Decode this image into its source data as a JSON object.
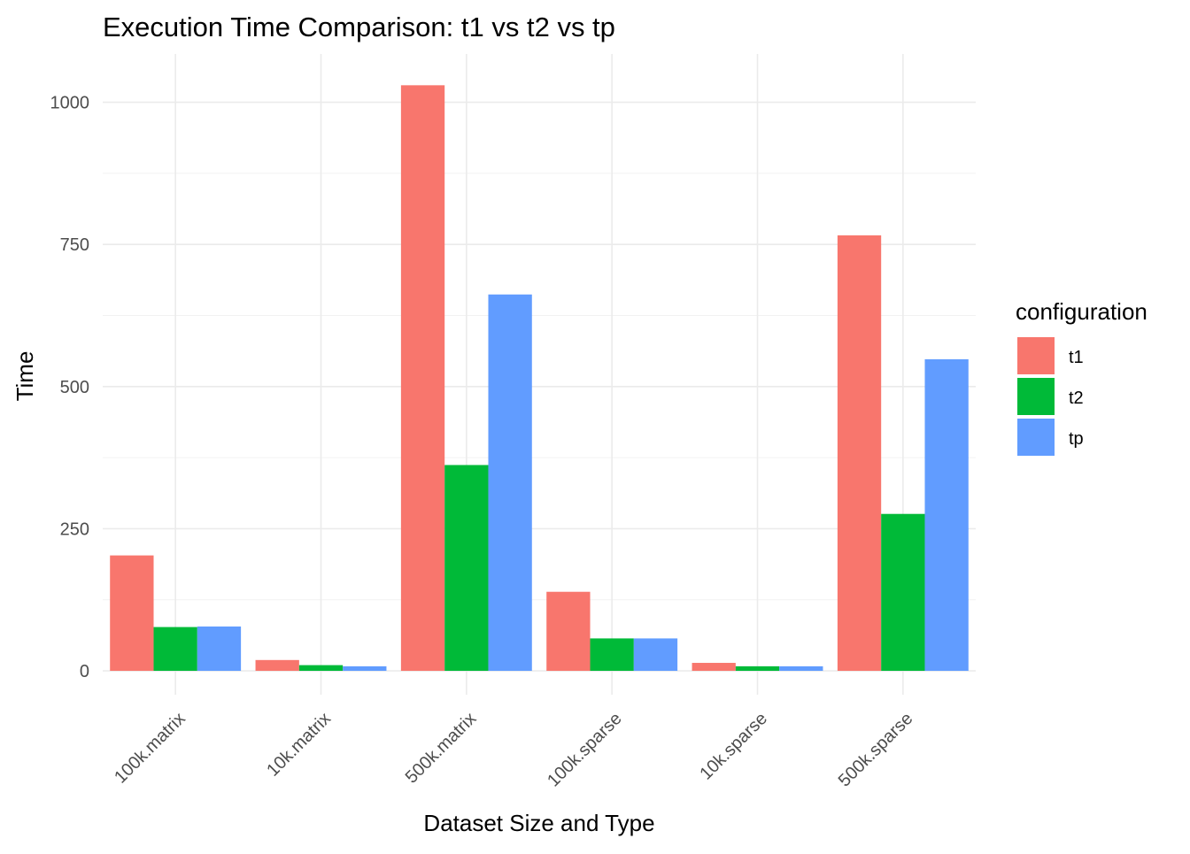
{
  "chart_data": {
    "type": "bar",
    "title": "Execution Time Comparison: t1 vs t2 vs tp",
    "xlabel": "Dataset Size and Type",
    "ylabel": "Time",
    "categories": [
      "100k.matrix",
      "10k.matrix",
      "500k.matrix",
      "100k.sparse",
      "10k.sparse",
      "500k.sparse"
    ],
    "series": [
      {
        "name": "t1",
        "color": "#F8766D",
        "values": [
          203,
          19,
          1030,
          139,
          14,
          766
        ]
      },
      {
        "name": "t2",
        "color": "#00BA38",
        "values": [
          77,
          10,
          362,
          57,
          8,
          276
        ]
      },
      {
        "name": "tp",
        "color": "#619CFF",
        "values": [
          78,
          8,
          662,
          57,
          8,
          548
        ]
      }
    ],
    "ylim": [
      -42,
      1085
    ],
    "yticks": [
      0,
      250,
      500,
      750,
      1000
    ],
    "grid": true,
    "legend": {
      "title": "configuration",
      "position": "right"
    }
  }
}
